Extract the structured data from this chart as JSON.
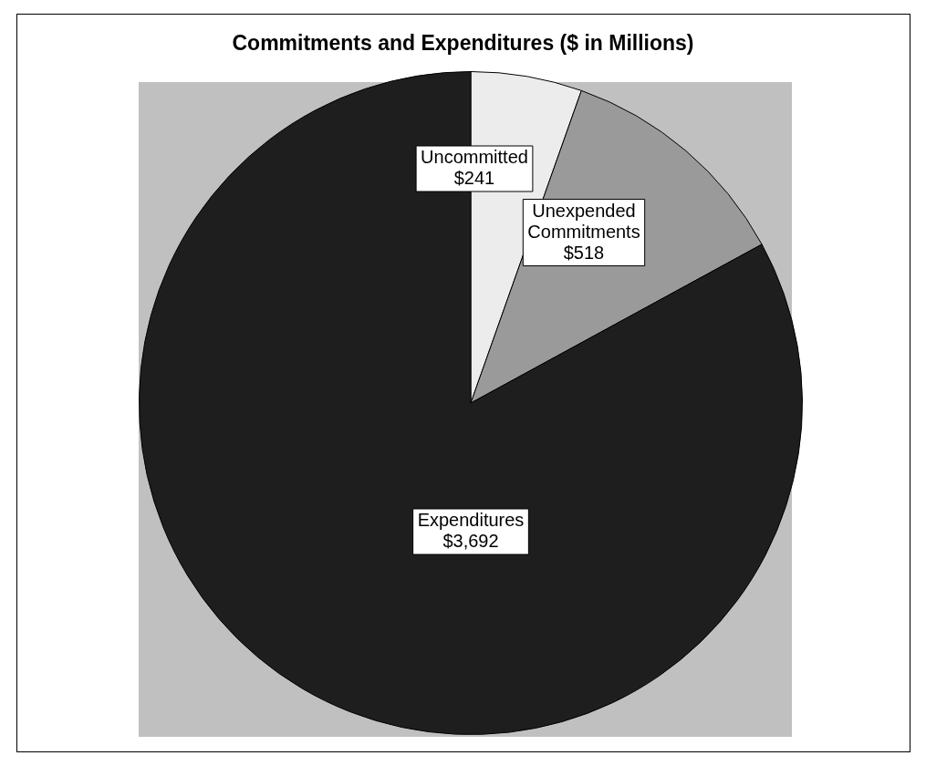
{
  "chart_data": {
    "type": "pie",
    "title": "Commitments and Expenditures ($ in Millions)",
    "categories": [
      "Uncommitted",
      "Unexpended Commitments",
      "Expenditures"
    ],
    "values": [
      241,
      518,
      3692
    ],
    "value_labels": [
      "$241",
      "$518",
      "$3,692"
    ],
    "colors": [
      "#ececec",
      "#9a9a9a",
      "#1e1e1e"
    ],
    "legend": false
  }
}
